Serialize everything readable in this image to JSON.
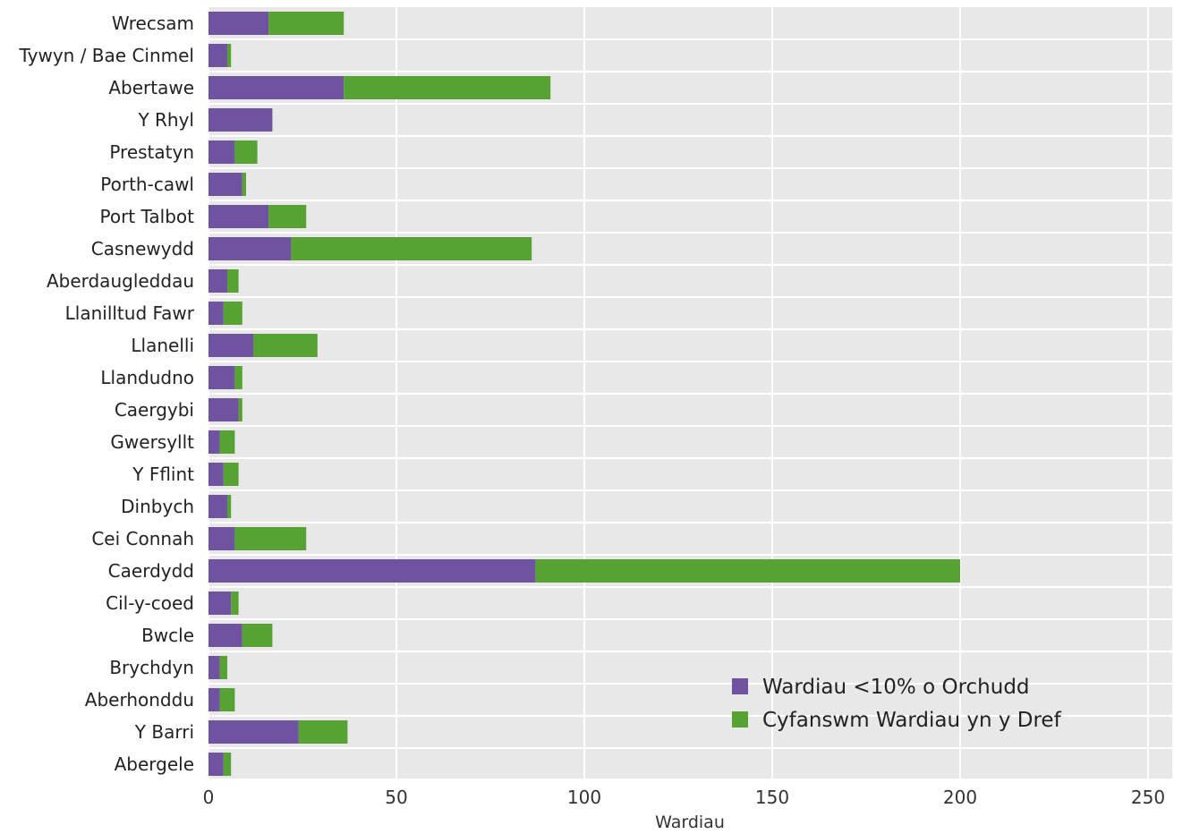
{
  "chart_data": {
    "type": "bar",
    "orientation": "horizontal",
    "stacked": true,
    "categories": [
      "Wrecsam",
      "Tywyn / Bae Cinmel",
      "Abertawe",
      "Y Rhyl",
      "Prestatyn",
      "Porth-cawl",
      "Port Talbot",
      "Casnewydd",
      "Aberdaugleddau",
      "Llanilltud Fawr",
      "Llanelli",
      "Llandudno",
      "Caergybi",
      "Gwersyllt",
      "Y Fflint",
      "Dinbych",
      "Cei Connah",
      "Caerdydd",
      "Cil-y-coed",
      "Bwcle",
      "Brychdyn",
      "Aberhonddu",
      "Y Barri",
      "Abergele"
    ],
    "series": [
      {
        "name": "Wardiau <10% o Orchudd",
        "color": "#6f53a0",
        "values": [
          16,
          5,
          36,
          17,
          7,
          9,
          16,
          22,
          5,
          4,
          12,
          7,
          8,
          3,
          4,
          5,
          7,
          87,
          6,
          9,
          3,
          3,
          24,
          4
        ]
      },
      {
        "name": "Cyfanswm Wardiau yn y Dref",
        "color": "#56a232",
        "values": [
          20,
          1,
          55,
          0,
          6,
          1,
          10,
          64,
          3,
          5,
          17,
          2,
          1,
          4,
          4,
          1,
          19,
          113,
          2,
          8,
          2,
          4,
          13,
          2
        ]
      }
    ],
    "xlabel": "Wardiau",
    "xlim": [
      0,
      250
    ],
    "xticks": [
      0,
      50,
      100,
      150,
      200,
      250
    ],
    "xtick_labels": [
      "0",
      "50",
      "100",
      "150",
      "200",
      "250"
    ],
    "grid": true,
    "legend_position": "bottom-right",
    "background": "#e8e8e8",
    "gridline_color": "#ffffff"
  }
}
